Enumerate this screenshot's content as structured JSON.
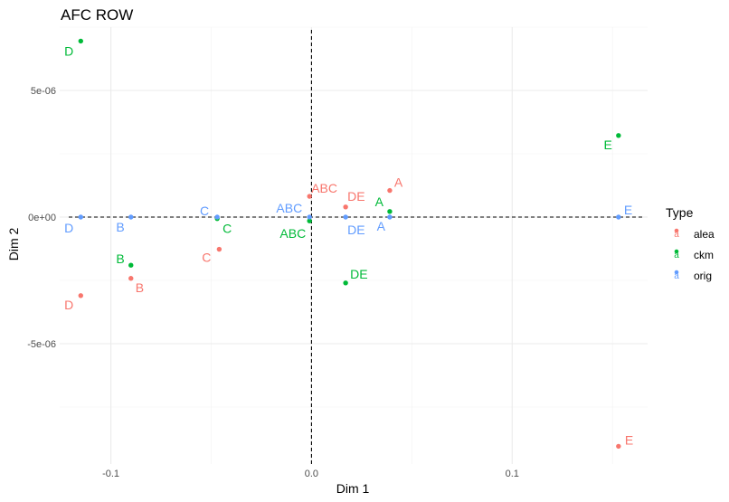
{
  "chart_data": {
    "type": "scatter",
    "title": "AFC ROW",
    "xlabel": "Dim 1",
    "ylabel": "Dim 2",
    "xlim": [
      -0.1255,
      0.1675
    ],
    "ylim": [
      -9.75e-06,
      7.5e-06
    ],
    "x_ticks": [
      {
        "value": -0.1,
        "label": "-0.1"
      },
      {
        "value": 0.0,
        "label": "0.0"
      },
      {
        "value": 0.1,
        "label": "0.1"
      }
    ],
    "y_ticks": [
      {
        "value": -5e-06,
        "label": "-5e-06"
      },
      {
        "value": 0,
        "label": "0e+00"
      },
      {
        "value": 5e-06,
        "label": "5e-06"
      }
    ],
    "grid": true,
    "reference_lines": {
      "x": 0,
      "y": 0,
      "style": "dashed"
    },
    "legend": {
      "title": "Type",
      "position": "right",
      "key_glyph": "a",
      "entries": [
        {
          "name": "alea",
          "color": "#F8766D"
        },
        {
          "name": "ckm",
          "color": "#00BA38"
        },
        {
          "name": "orig",
          "color": "#619CFF"
        }
      ]
    },
    "series": [
      {
        "name": "alea",
        "color": "#F8766D",
        "points": [
          {
            "label": "A",
            "x": 0.039,
            "y": 1.05e-06
          },
          {
            "label": "B",
            "x": -0.09,
            "y": -2.42e-06
          },
          {
            "label": "C",
            "x": -0.046,
            "y": -1.27e-06
          },
          {
            "label": "D",
            "x": -0.115,
            "y": -3.1e-06
          },
          {
            "label": "E",
            "x": 0.153,
            "y": -9.05e-06
          },
          {
            "label": "ABC",
            "x": -0.001,
            "y": 8.2e-07
          },
          {
            "label": "DE",
            "x": 0.017,
            "y": 4e-07
          }
        ]
      },
      {
        "name": "ckm",
        "color": "#00BA38",
        "points": [
          {
            "label": "A",
            "x": 0.039,
            "y": 2.2e-07
          },
          {
            "label": "B",
            "x": -0.09,
            "y": -1.9e-06
          },
          {
            "label": "C",
            "x": -0.047,
            "y": -6e-08
          },
          {
            "label": "D",
            "x": -0.115,
            "y": 6.95e-06
          },
          {
            "label": "E",
            "x": 0.153,
            "y": 3.22e-06
          },
          {
            "label": "ABC",
            "x": -0.001,
            "y": -1.5e-07
          },
          {
            "label": "DE",
            "x": 0.017,
            "y": -2.6e-06
          }
        ]
      },
      {
        "name": "orig",
        "color": "#619CFF",
        "points": [
          {
            "label": "A",
            "x": 0.039,
            "y": 0
          },
          {
            "label": "B",
            "x": -0.09,
            "y": 0
          },
          {
            "label": "C",
            "x": -0.047,
            "y": 0
          },
          {
            "label": "D",
            "x": -0.115,
            "y": 0
          },
          {
            "label": "E",
            "x": 0.153,
            "y": 0
          },
          {
            "label": "ABC",
            "x": -0.001,
            "y": 0
          },
          {
            "label": "DE",
            "x": 0.017,
            "y": 0
          }
        ]
      }
    ]
  }
}
